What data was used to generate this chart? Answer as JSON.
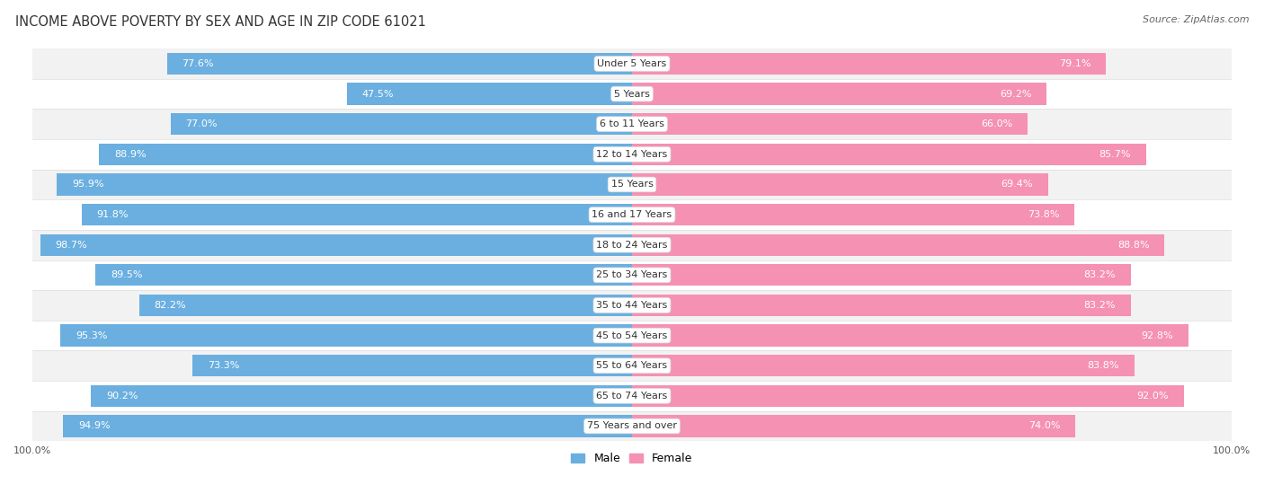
{
  "title": "INCOME ABOVE POVERTY BY SEX AND AGE IN ZIP CODE 61021",
  "source": "Source: ZipAtlas.com",
  "categories": [
    "Under 5 Years",
    "5 Years",
    "6 to 11 Years",
    "12 to 14 Years",
    "15 Years",
    "16 and 17 Years",
    "18 to 24 Years",
    "25 to 34 Years",
    "35 to 44 Years",
    "45 to 54 Years",
    "55 to 64 Years",
    "65 to 74 Years",
    "75 Years and over"
  ],
  "male_values": [
    77.6,
    47.5,
    77.0,
    88.9,
    95.9,
    91.8,
    98.7,
    89.5,
    82.2,
    95.3,
    73.3,
    90.2,
    94.9
  ],
  "female_values": [
    79.1,
    69.2,
    66.0,
    85.7,
    69.4,
    73.8,
    88.8,
    83.2,
    83.2,
    92.8,
    83.8,
    92.0,
    74.0
  ],
  "male_color": "#6aafe0",
  "female_color": "#f591b2",
  "male_label": "Male",
  "female_label": "Female",
  "row_colors": [
    "#f2f2f2",
    "#ffffff"
  ],
  "title_fontsize": 10.5,
  "source_fontsize": 8,
  "label_fontsize": 8,
  "tick_fontsize": 8,
  "category_fontsize": 8
}
